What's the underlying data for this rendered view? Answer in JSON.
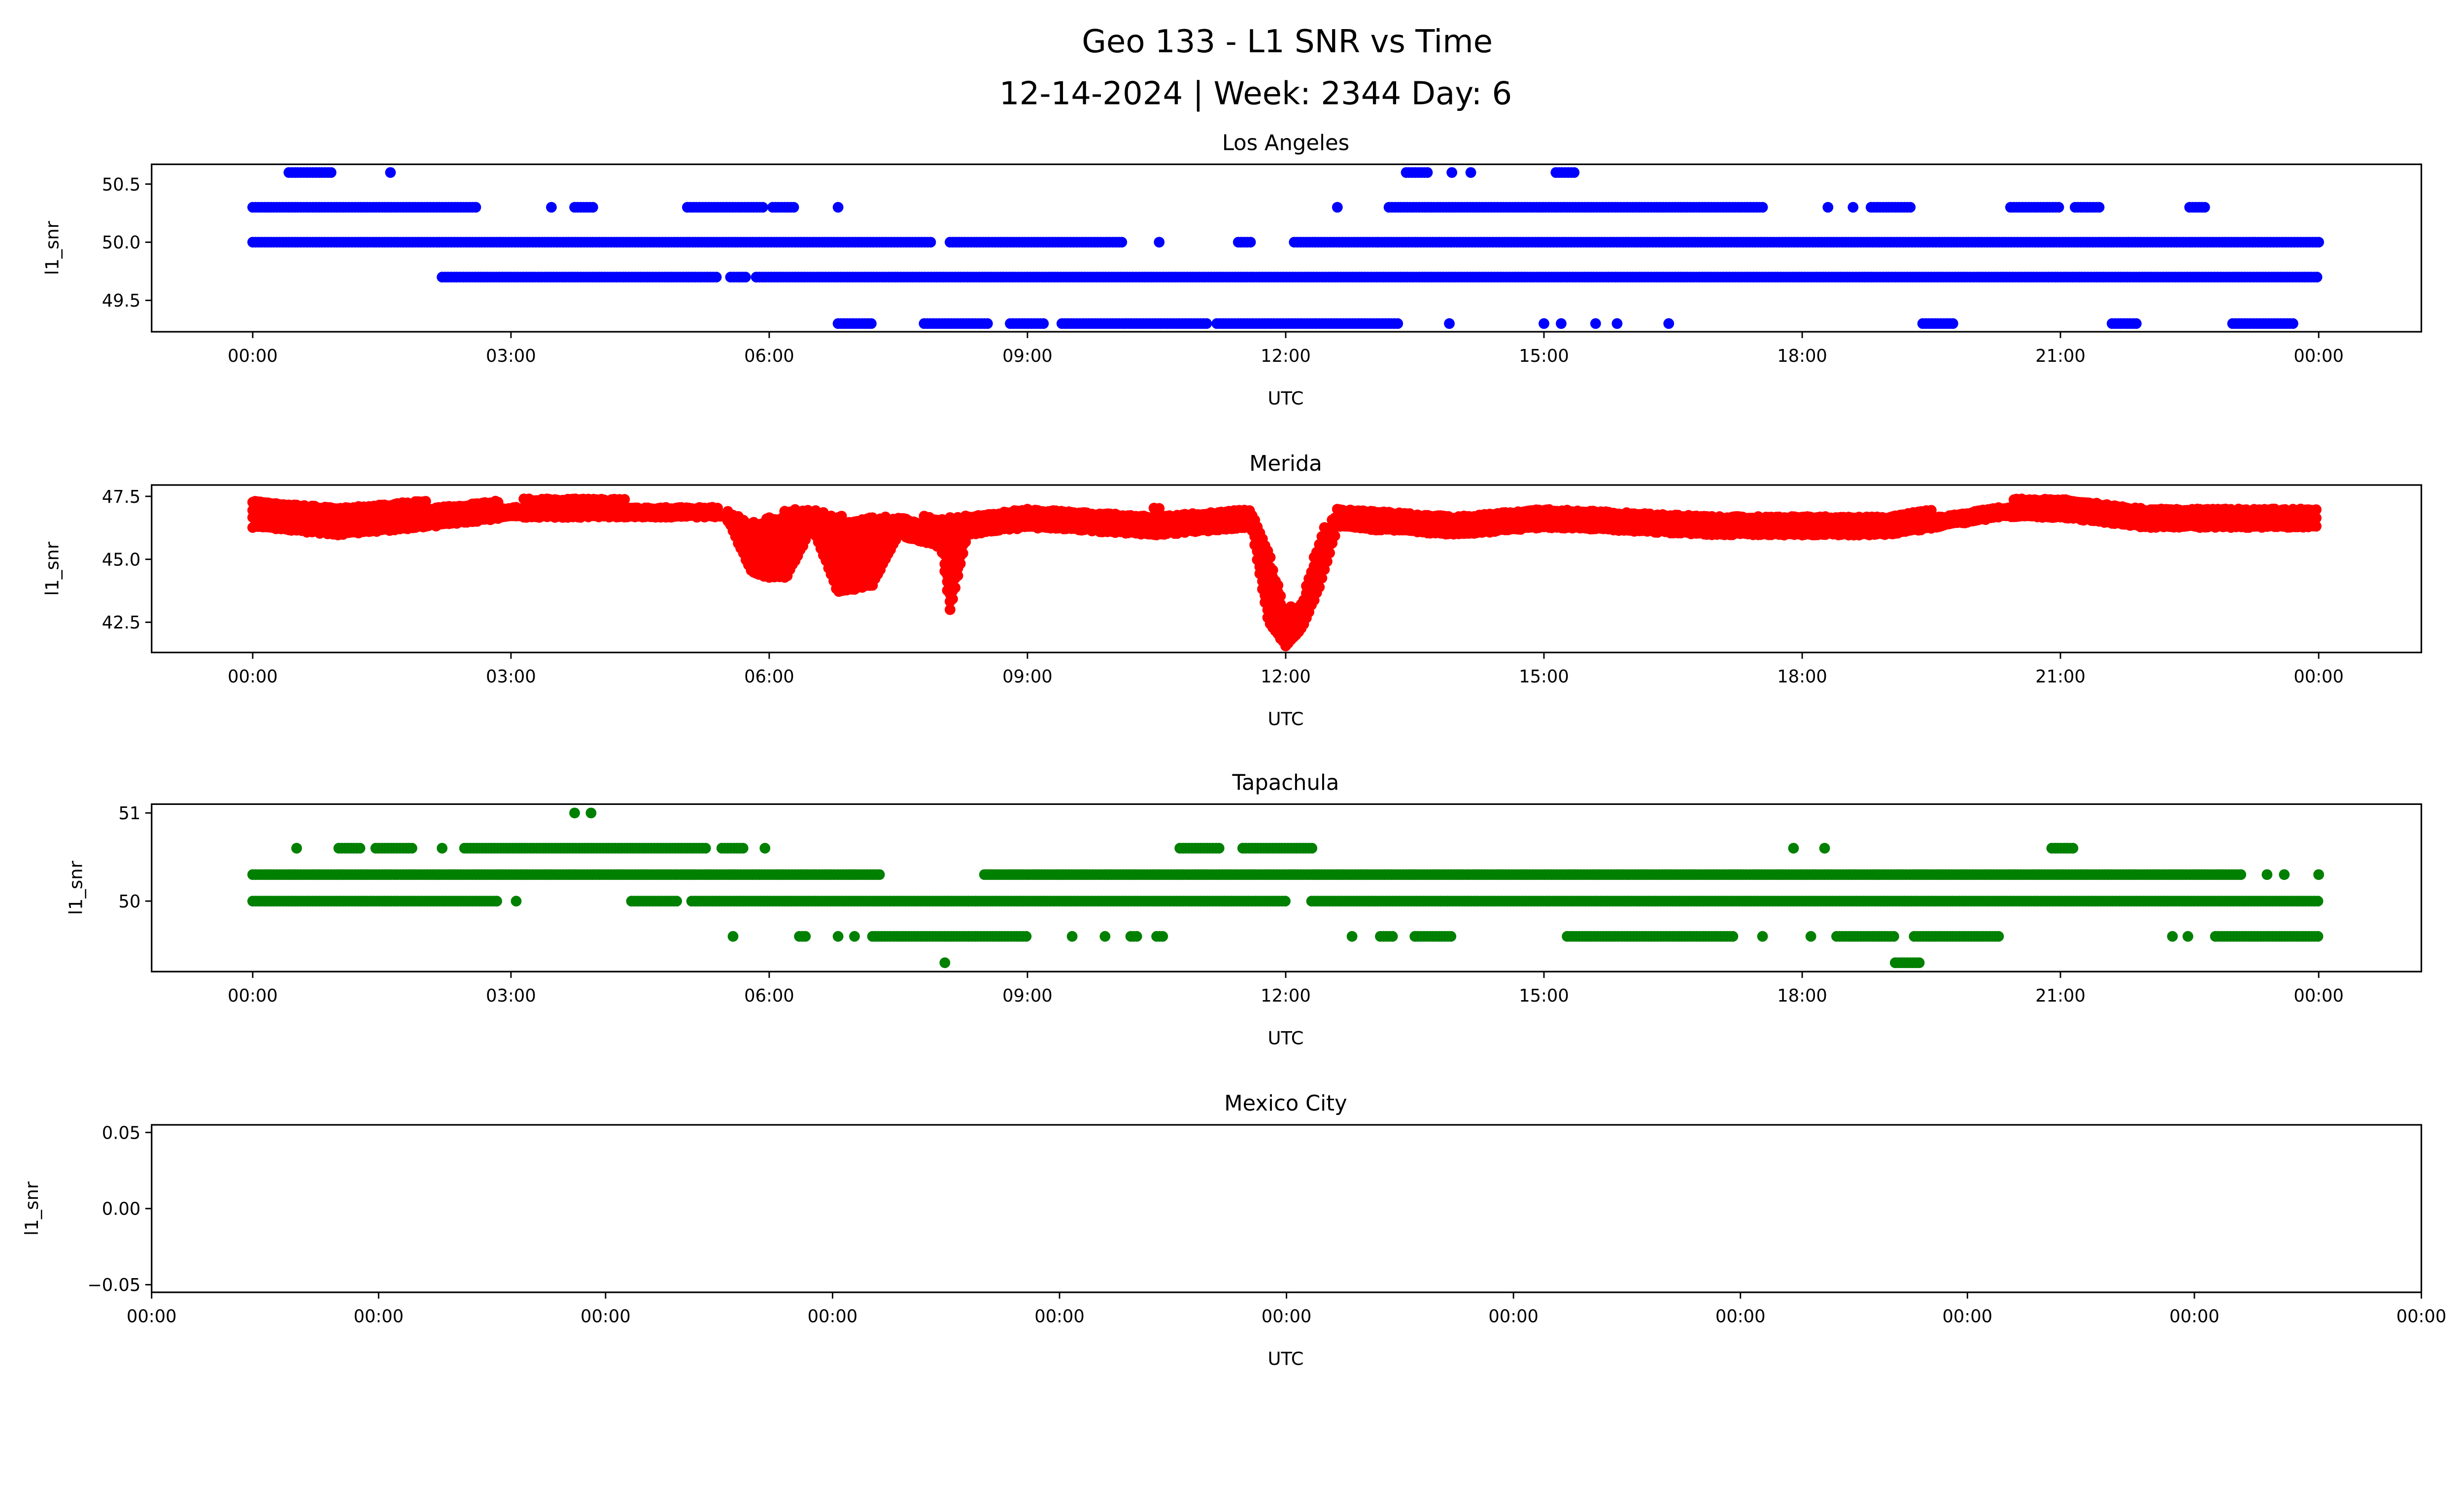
{
  "title_line1": "Geo 133 - L1 SNR vs Time",
  "title_line2": "12-14-2024 | Week: 2344 Day: 6",
  "chart_data": [
    {
      "type": "scatter",
      "title": "Los Angeles",
      "xlabel": "UTC",
      "ylabel": "l1_snr",
      "color": "#0000ff",
      "xticks": [
        "00:00",
        "03:00",
        "06:00",
        "09:00",
        "12:00",
        "15:00",
        "18:00",
        "21:00",
        "00:00"
      ],
      "xlim_hours": [
        -1.17,
        25.15
      ],
      "yticks": [
        "50.5",
        "50.0",
        "49.5"
      ],
      "ytick_values": [
        50.5,
        50.0,
        49.5
      ],
      "ylim": [
        49.23,
        50.67
      ],
      "level_runs_hours": [
        {
          "y": 50.6,
          "runs": [
            [
              0.42,
              0.94
            ],
            [
              1.6,
              1.6
            ],
            [
              13.4,
              13.67
            ],
            [
              13.93,
              13.93
            ],
            [
              14.15,
              14.15
            ],
            [
              15.14,
              15.38
            ]
          ]
        },
        {
          "y": 50.3,
          "runs": [
            [
              0,
              2.6
            ],
            [
              3.47,
              3.47
            ],
            [
              3.74,
              3.98
            ],
            [
              5.05,
              5.94
            ],
            [
              6.04,
              6.29
            ],
            [
              6.8,
              6.8
            ],
            [
              12.6,
              12.6
            ],
            [
              13.2,
              17.54
            ],
            [
              18.3,
              18.3
            ],
            [
              18.59,
              18.59
            ],
            [
              18.8,
              19.27
            ],
            [
              20.42,
              21.0
            ],
            [
              21.17,
              21.47
            ],
            [
              22.5,
              22.7
            ]
          ]
        },
        {
          "y": 50.0,
          "runs": [
            [
              0,
              7.9
            ],
            [
              8.1,
              10.1
            ],
            [
              10.53,
              10.55
            ],
            [
              11.45,
              11.6
            ],
            [
              12.1,
              24
            ]
          ]
        },
        {
          "y": 49.7,
          "runs": [
            [
              2.2,
              5.4
            ],
            [
              5.55,
              5.75
            ],
            [
              5.85,
              24
            ]
          ]
        },
        {
          "y": 49.3,
          "runs": [
            [
              6.8,
              7.2
            ],
            [
              7.8,
              8.55
            ],
            [
              8.8,
              9.2
            ],
            [
              9.4,
              11.1
            ],
            [
              11.2,
              13.3
            ],
            [
              13.9,
              13.9
            ],
            [
              15.0,
              15.0
            ],
            [
              15.2,
              15.2
            ],
            [
              15.6,
              15.6
            ],
            [
              15.85,
              15.85
            ],
            [
              16.45,
              16.45
            ],
            [
              19.4,
              19.75
            ],
            [
              21.6,
              21.9
            ],
            [
              23.0,
              23.7
            ]
          ]
        }
      ]
    },
    {
      "type": "scatter",
      "title": "Merida",
      "xlabel": "UTC",
      "ylabel": "l1_snr",
      "color": "#ff0000",
      "xticks": [
        "00:00",
        "03:00",
        "06:00",
        "09:00",
        "12:00",
        "15:00",
        "18:00",
        "21:00",
        "00:00"
      ],
      "xlim_hours": [
        -1.17,
        25.15
      ],
      "yticks": [
        "47.5",
        "45.0",
        "42.5"
      ],
      "ytick_values": [
        47.5,
        45.0,
        42.5
      ],
      "ylim": [
        41.3,
        47.95
      ],
      "band_hours_lo_hi": [
        [
          0,
          46.3,
          47.3
        ],
        [
          1,
          46.0,
          47.0
        ],
        [
          2,
          46.3,
          47.3
        ],
        [
          3,
          46.7,
          47.3
        ],
        [
          3.7,
          46.7,
          47.6
        ],
        [
          4.5,
          46.7,
          47.3
        ],
        [
          5.5,
          46.7,
          47.0
        ],
        [
          5.8,
          44.5,
          46.5
        ],
        [
          6.0,
          44.3,
          46.7
        ],
        [
          6.2,
          44.3,
          47.0
        ],
        [
          6.5,
          46.3,
          47.0
        ],
        [
          6.8,
          43.7,
          46.7
        ],
        [
          7.2,
          44.0,
          46.7
        ],
        [
          7.5,
          46.0,
          46.7
        ],
        [
          8.0,
          45.5,
          46.7
        ],
        [
          8.1,
          43.0,
          46.7
        ],
        [
          8.3,
          46.0,
          46.7
        ],
        [
          9,
          46.3,
          47.0
        ],
        [
          10.5,
          46.0,
          47.0
        ],
        [
          11.6,
          46.3,
          47.0
        ],
        [
          11.8,
          42.5,
          45.3
        ],
        [
          12.0,
          41.6,
          43.0
        ],
        [
          12.2,
          42.3,
          43.5
        ],
        [
          12.4,
          44.0,
          46.0
        ],
        [
          12.6,
          46.3,
          47.0
        ],
        [
          14,
          46.0,
          46.7
        ],
        [
          15,
          46.3,
          47.0
        ],
        [
          17,
          46.0,
          46.7
        ],
        [
          19,
          46.0,
          46.7
        ],
        [
          20.3,
          46.7,
          47.3
        ],
        [
          21,
          46.7,
          47.6
        ],
        [
          22,
          46.3,
          47.0
        ],
        [
          24,
          46.3,
          47.0
        ]
      ]
    },
    {
      "type": "scatter",
      "title": "Tapachula",
      "xlabel": "UTC",
      "ylabel": "l1_snr",
      "color": "#008000",
      "xticks": [
        "00:00",
        "03:00",
        "06:00",
        "09:00",
        "12:00",
        "15:00",
        "18:00",
        "21:00",
        "00:00"
      ],
      "xlim_hours": [
        -1.17,
        25.15
      ],
      "yticks": [
        "51",
        "50"
      ],
      "ytick_values": [
        51,
        50
      ],
      "ylim": [
        49.2,
        51.1
      ],
      "level_runs_hours": [
        {
          "y": 51.0,
          "runs": [
            [
              3.74,
              3.74
            ],
            [
              3.93,
              3.93
            ]
          ]
        },
        {
          "y": 50.6,
          "runs": [
            [
              0.51,
              0.51
            ],
            [
              1.0,
              1.25
            ],
            [
              1.43,
              1.87
            ],
            [
              2.2,
              2.2
            ],
            [
              2.46,
              5.27
            ],
            [
              5.45,
              5.72
            ],
            [
              5.95,
              5.95
            ],
            [
              10.77,
              11.23
            ],
            [
              11.5,
              12.33
            ],
            [
              17.9,
              17.9
            ],
            [
              18.26,
              18.26
            ],
            [
              20.9,
              21.17
            ]
          ]
        },
        {
          "y": 50.3,
          "runs": [
            [
              0,
              7.3
            ],
            [
              8.5,
              23.1
            ],
            [
              23.4,
              23.4
            ],
            [
              23.6,
              23.6
            ],
            [
              24,
              24
            ]
          ]
        },
        {
          "y": 50.0,
          "runs": [
            [
              0,
              2.85
            ],
            [
              3.06,
              3.06
            ],
            [
              4.4,
              4.95
            ],
            [
              5.1,
              12.0
            ],
            [
              12.3,
              24
            ]
          ]
        },
        {
          "y": 49.6,
          "runs": [
            [
              5.58,
              5.58
            ],
            [
              6.35,
              6.44
            ],
            [
              6.8,
              6.8
            ],
            [
              6.99,
              6.99
            ],
            [
              7.2,
              9.0
            ],
            [
              9.52,
              9.52
            ],
            [
              9.9,
              9.9
            ],
            [
              10.2,
              10.3
            ],
            [
              10.5,
              10.6
            ],
            [
              12.77,
              12.77
            ],
            [
              13.1,
              13.25
            ],
            [
              13.5,
              13.95
            ],
            [
              15.27,
              17.2
            ],
            [
              17.54,
              17.54
            ],
            [
              18.1,
              18.1
            ],
            [
              18.4,
              19.08
            ],
            [
              19.3,
              20.3
            ],
            [
              22.3,
              22.3
            ],
            [
              22.48,
              22.48
            ],
            [
              22.8,
              24
            ]
          ]
        },
        {
          "y": 49.3,
          "runs": [
            [
              8.04,
              8.04
            ],
            [
              19.08,
              19.38
            ]
          ]
        }
      ]
    },
    {
      "type": "scatter",
      "title": "Mexico City",
      "xlabel": "UTC",
      "ylabel": "l1_snr",
      "color": "#0000ff",
      "xticks": [
        "00:00",
        "00:00",
        "00:00",
        "00:00",
        "00:00",
        "00:00",
        "00:00",
        "00:00",
        "00:00",
        "00:00",
        "00:00"
      ],
      "yticks": [
        "0.05",
        "0.00",
        "−0.05"
      ],
      "ytick_values": [
        0.05,
        0.0,
        -0.05
      ],
      "ylim": [
        -0.055,
        0.055
      ],
      "level_runs_hours": []
    }
  ]
}
